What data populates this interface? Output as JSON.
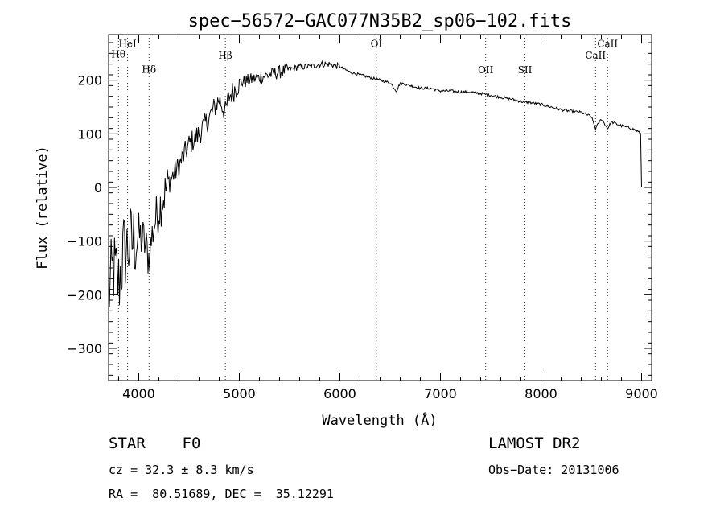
{
  "chart_data": {
    "type": "line",
    "title": "spec−56572−GAC077N35B2_sp06−102.fits",
    "xlabel": "Wavelength (Å)",
    "ylabel": "Flux (relative)",
    "xlim": [
      3700,
      9100
    ],
    "ylim": [
      -360,
      285
    ],
    "xticks": [
      4000,
      5000,
      6000,
      7000,
      8000,
      9000
    ],
    "xtick_labels": [
      "4000",
      "5000",
      "6000",
      "7000",
      "8000",
      "9000"
    ],
    "yticks": [
      -300,
      -200,
      -100,
      0,
      100,
      200
    ],
    "ytick_labels": [
      "−300",
      "−200",
      "−100",
      "0",
      "100",
      "200"
    ],
    "grid": false,
    "series": [
      {
        "x": [
          3700,
          3750,
          3800,
          3850,
          3900,
          3950,
          4000,
          4050,
          4100,
          4150,
          4200,
          4300,
          4400,
          4500,
          4600,
          4700,
          4800,
          4861,
          4900,
          5000,
          5100,
          5200,
          5300,
          5400,
          5500,
          5600,
          5700,
          5800,
          5900,
          6000,
          6100,
          6200,
          6300,
          6400,
          6500,
          6563,
          6600,
          6700,
          6800,
          6900,
          7000,
          7100,
          7200,
          7300,
          7400,
          7500,
          7600,
          7700,
          7800,
          7900,
          8000,
          8100,
          8200,
          8300,
          8400,
          8500,
          8542,
          8600,
          8662,
          8700,
          8800,
          8900,
          8960,
          8990,
          9000
        ],
        "y": [
          -200,
          -150,
          -180,
          -120,
          -110,
          -100,
          -90,
          -100,
          -130,
          -70,
          -40,
          10,
          40,
          80,
          100,
          130,
          165,
          140,
          170,
          195,
          200,
          205,
          210,
          215,
          220,
          225,
          225,
          230,
          230,
          225,
          215,
          210,
          205,
          200,
          195,
          180,
          195,
          190,
          185,
          185,
          180,
          180,
          178,
          178,
          175,
          172,
          168,
          165,
          160,
          158,
          155,
          150,
          145,
          142,
          140,
          132,
          110,
          128,
          110,
          122,
          115,
          110,
          105,
          100,
          0
        ]
      }
    ],
    "vlines": [
      {
        "label": "Hθ",
        "x": 3798,
        "label_y": 242
      },
      {
        "label": "HeI",
        "x": 3889,
        "label_y": 262
      },
      {
        "label": "Hδ",
        "x": 4102,
        "label_y": 214
      },
      {
        "label": "Hβ",
        "x": 4861,
        "label_y": 240
      },
      {
        "label": "OI",
        "x": 6363,
        "label_y": 262
      },
      {
        "label": "OII",
        "x": 7450,
        "label_y": 213
      },
      {
        "label": "SII",
        "x": 7840,
        "label_y": 213
      },
      {
        "label": "CaII",
        "x": 8542,
        "label_y": 240
      },
      {
        "label": "CaII",
        "x": 8662,
        "label_y": 262
      }
    ]
  },
  "info": {
    "object": "STAR    F0",
    "survey": "LAMOST DR2",
    "cz": "cz = 32.3 ± 8.3 km/s",
    "obs_date": "Obs−Date: 20131006",
    "coords": "RA =  80.51689, DEC =  35.12291"
  }
}
